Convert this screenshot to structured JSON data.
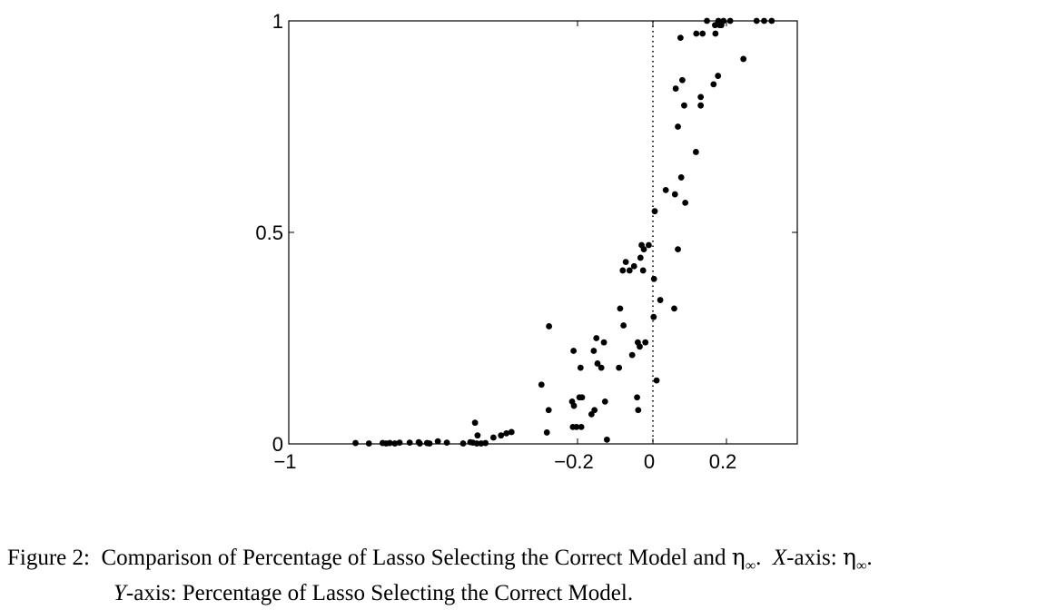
{
  "chart_data": {
    "type": "scatter",
    "title": "",
    "xlabel": "",
    "ylabel": "",
    "xlim": [
      -1,
      0.4
    ],
    "ylim": [
      0,
      1
    ],
    "x_ticks": [
      -1,
      -0.2,
      0,
      0.2
    ],
    "x_tick_labels": [
      "−1",
      "−0.2",
      "0",
      "0.2"
    ],
    "y_ticks": [
      0,
      0.5,
      1
    ],
    "y_tick_labels": [
      "0",
      "0.5",
      "1"
    ],
    "grid": false,
    "legend": "none",
    "reference_line": {
      "x": 0,
      "style": "dotted"
    },
    "marker_color": "#000000",
    "series": [
      {
        "points": [
          [
            -0.815,
            0.002
          ],
          [
            -0.778,
            0.001
          ],
          [
            -0.74,
            0.002
          ],
          [
            -0.73,
            0.001
          ],
          [
            -0.72,
            0.002
          ],
          [
            -0.706,
            0.001
          ],
          [
            -0.693,
            0.003
          ],
          [
            -0.665,
            0.003
          ],
          [
            -0.64,
            0.004
          ],
          [
            -0.637,
            0.001
          ],
          [
            -0.617,
            0.002
          ],
          [
            -0.61,
            0.001
          ],
          [
            -0.587,
            0.006
          ],
          [
            -0.562,
            0.003
          ],
          [
            -0.517,
            0.001
          ],
          [
            -0.497,
            0.004
          ],
          [
            -0.49,
            0.003
          ],
          [
            -0.484,
            0.05
          ],
          [
            -0.479,
            0.001
          ],
          [
            -0.477,
            0.02
          ],
          [
            -0.467,
            0.001
          ],
          [
            -0.455,
            0.002
          ],
          [
            -0.433,
            0.015
          ],
          [
            -0.412,
            0.02
          ],
          [
            -0.397,
            0.025
          ],
          [
            -0.383,
            0.028
          ],
          [
            -0.3,
            0.14
          ],
          [
            -0.28,
            0.08
          ],
          [
            -0.285,
            0.027
          ],
          [
            -0.279,
            0.278
          ],
          [
            -0.215,
            0.1
          ],
          [
            -0.213,
            0.04
          ],
          [
            -0.211,
            0.22
          ],
          [
            -0.21,
            0.09
          ],
          [
            -0.203,
            0.04
          ],
          [
            -0.195,
            0.11
          ],
          [
            -0.192,
            0.18
          ],
          [
            -0.19,
            0.04
          ],
          [
            -0.188,
            0.11
          ],
          [
            -0.163,
            0.07
          ],
          [
            -0.155,
            0.08
          ],
          [
            -0.157,
            0.22
          ],
          [
            -0.15,
            0.25
          ],
          [
            -0.147,
            0.19
          ],
          [
            -0.137,
            0.18
          ],
          [
            -0.13,
            0.24
          ],
          [
            -0.127,
            0.1
          ],
          [
            -0.122,
            0.01
          ],
          [
            -0.09,
            0.18
          ],
          [
            -0.087,
            0.32
          ],
          [
            -0.08,
            0.41
          ],
          [
            -0.078,
            0.28
          ],
          [
            -0.072,
            0.43
          ],
          [
            -0.062,
            0.41
          ],
          [
            -0.055,
            0.21
          ],
          [
            -0.05,
            0.42
          ],
          [
            -0.042,
            0.11
          ],
          [
            -0.04,
            0.24
          ],
          [
            -0.039,
            0.08
          ],
          [
            -0.035,
            0.23
          ],
          [
            -0.033,
            0.44
          ],
          [
            -0.03,
            0.47
          ],
          [
            -0.026,
            0.41
          ],
          [
            -0.024,
            0.46
          ],
          [
            -0.02,
            0.24
          ],
          [
            -0.011,
            0.47
          ],
          [
            0.003,
            0.39
          ],
          [
            0.002,
            0.3
          ],
          [
            0.005,
            0.55
          ],
          [
            0.01,
            0.15
          ],
          [
            0.02,
            0.34
          ],
          [
            0.035,
            0.6
          ],
          [
            0.058,
            0.32
          ],
          [
            0.062,
            0.84
          ],
          [
            0.06,
            0.59
          ],
          [
            0.068,
            0.75
          ],
          [
            0.068,
            0.46
          ],
          [
            0.075,
            0.96
          ],
          [
            0.077,
            0.63
          ],
          [
            0.08,
            0.86
          ],
          [
            0.085,
            0.8
          ],
          [
            0.088,
            0.57
          ],
          [
            0.117,
            0.69
          ],
          [
            0.118,
            0.97
          ],
          [
            0.13,
            0.8
          ],
          [
            0.13,
            0.82
          ],
          [
            0.135,
            0.97
          ],
          [
            0.147,
            1.0
          ],
          [
            0.165,
            0.85
          ],
          [
            0.169,
            0.99
          ],
          [
            0.17,
            0.97
          ],
          [
            0.177,
            0.87
          ],
          [
            0.178,
            1.0
          ],
          [
            0.182,
            0.99
          ],
          [
            0.186,
            0.99
          ],
          [
            0.192,
            1.0
          ],
          [
            0.21,
            1.0
          ],
          [
            0.245,
            0.91
          ],
          [
            0.28,
            1.0
          ],
          [
            0.3,
            1.0
          ],
          [
            0.32,
            1.0
          ]
        ]
      }
    ]
  },
  "caption": {
    "prefix": "Figure 2:",
    "text_before_eta": "Comparison of Percentage of Lasso Selecting the Correct Model and",
    "eta": "η",
    "eta_sub": "∞",
    "after_eta1": ".",
    "x_axis_label": "X",
    "x_axis_suffix": "-axis:",
    "eta2": "η",
    "eta2_sub": "∞",
    "after_eta2": ".",
    "y_axis_label": "Y",
    "y_axis_suffix": "-axis:",
    "line2_text": "Percentage of Lasso Selecting the Correct Model."
  }
}
